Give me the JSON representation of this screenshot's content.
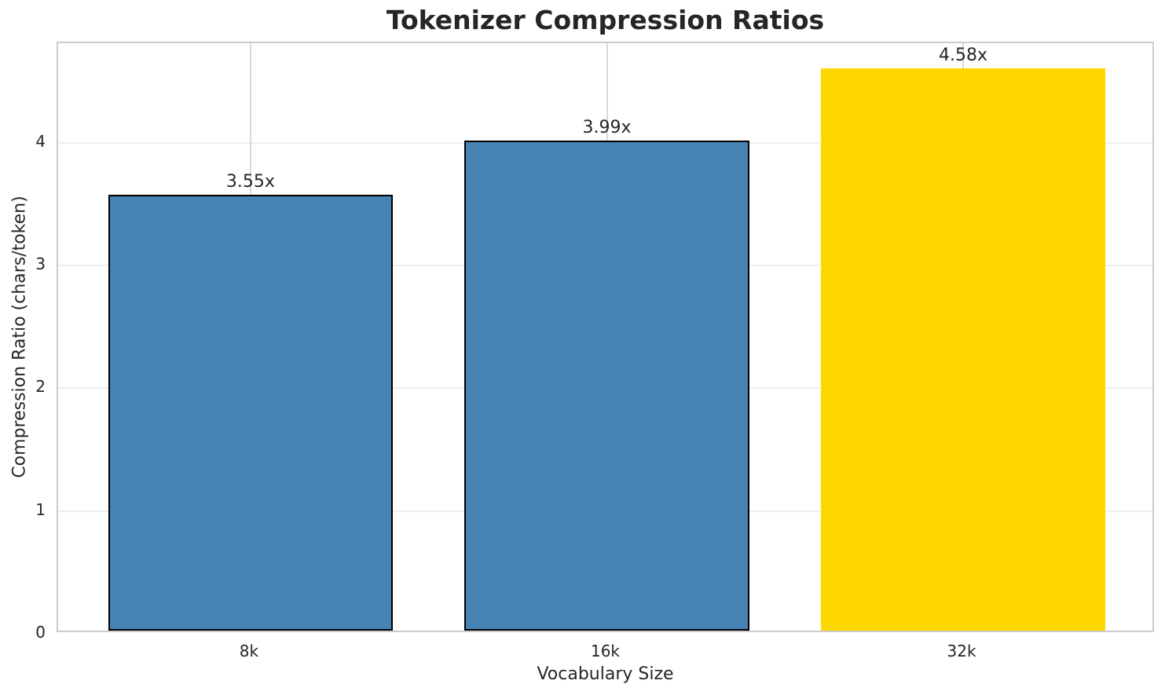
{
  "chart_data": {
    "type": "bar",
    "title": "Tokenizer Compression Ratios",
    "xlabel": "Vocabulary Size",
    "ylabel": "Compression Ratio (chars/token)",
    "categories": [
      "8k",
      "16k",
      "32k"
    ],
    "values": [
      3.55,
      3.99,
      4.58
    ],
    "bar_labels": [
      "3.55x",
      "3.99x",
      "4.58x"
    ],
    "bar_colors": [
      "#4682B4",
      "#4682B4",
      "#FFD700"
    ],
    "bar_edge_colors": [
      "#000000",
      "#000000",
      "none"
    ],
    "bar_x": [
      0,
      1,
      2
    ],
    "bar_width_data_units": 0.8,
    "xlim": [
      -0.54,
      2.54
    ],
    "ylim": [
      0,
      4.81
    ],
    "yticks": [
      0,
      1,
      2,
      3,
      4
    ],
    "grid": true,
    "legend": "none",
    "colors": {
      "grid_horizontal": "#eeeeee",
      "grid_vertical": "#d9d9d9",
      "spine": "#cccccc",
      "text": "#262626",
      "background": "#ffffff"
    }
  }
}
